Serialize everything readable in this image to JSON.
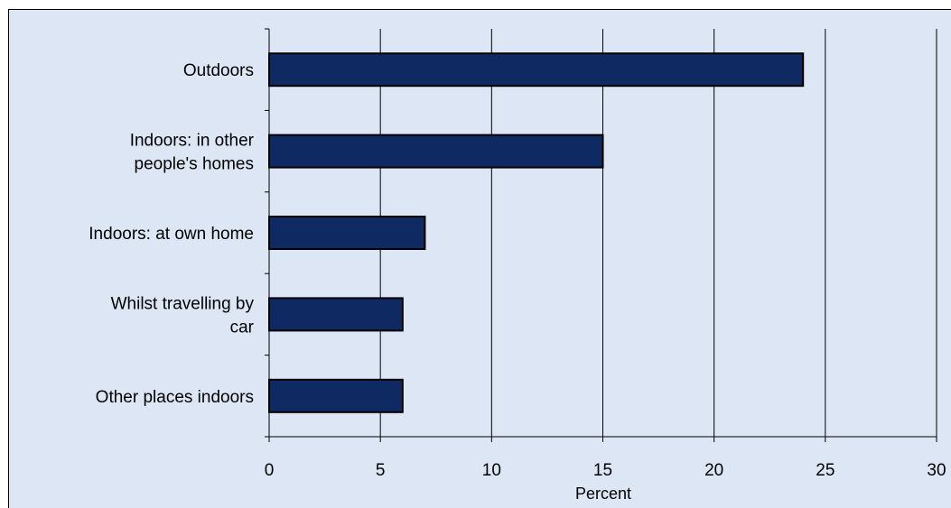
{
  "chart_data": {
    "type": "bar",
    "orientation": "horizontal",
    "categories": [
      [
        "Outdoors"
      ],
      [
        "Indoors: in other",
        "people's homes"
      ],
      [
        "Indoors: at own home"
      ],
      [
        "Whilst travelling by",
        "car"
      ],
      [
        "Other places indoors"
      ]
    ],
    "values": [
      24,
      15,
      7,
      6,
      6
    ],
    "title": "",
    "xlabel": "Percent",
    "ylabel": "",
    "xlim": [
      0,
      30
    ],
    "xticks": [
      0,
      5,
      10,
      15,
      20,
      25,
      30
    ],
    "grid": "vertical",
    "legend": "none",
    "colors": {
      "bar_fill": "#0f2a63",
      "bar_stroke": "#000000",
      "plot_background": "#dce6f5",
      "gridline": "#000000"
    }
  }
}
